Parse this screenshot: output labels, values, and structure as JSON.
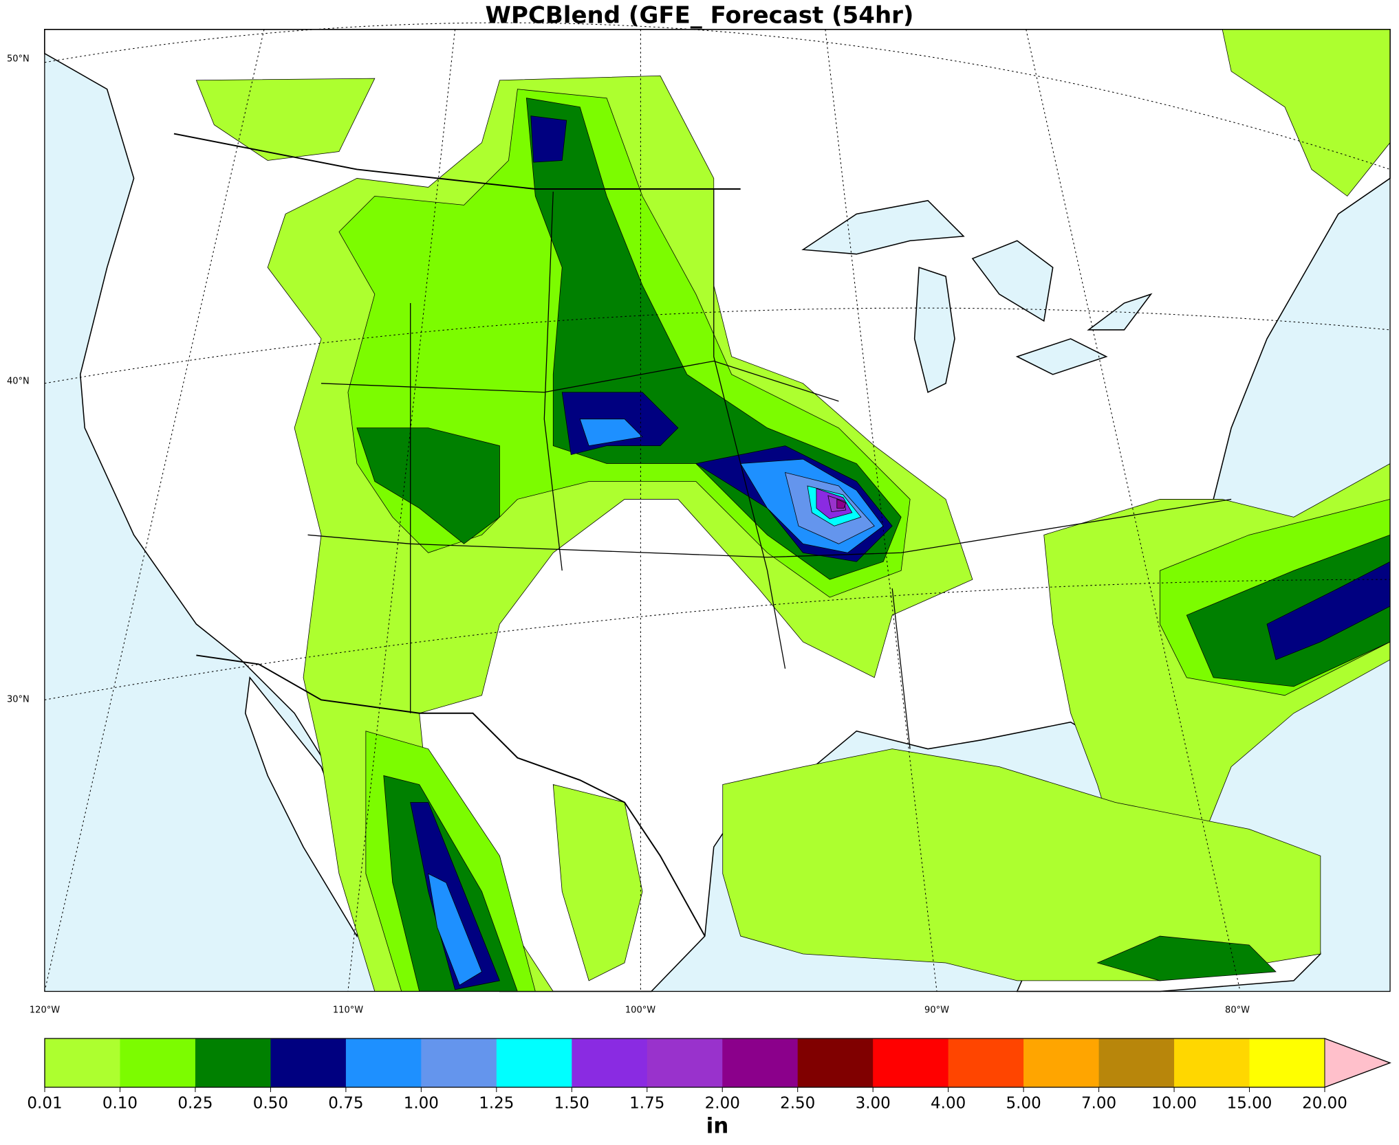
{
  "title": "WPCBlend (GFE_ Forecast (54hr)",
  "map": {
    "lat_labels": [
      "50°N",
      "40°N",
      "30°N"
    ],
    "lon_labels": [
      "120°W",
      "110°W",
      "100°W",
      "90°W",
      "80°W"
    ]
  },
  "colorbar": {
    "colors": [
      "#adff2f",
      "#7cfc00",
      "#008000",
      "#000080",
      "#1e90ff",
      "#6495ed",
      "#00ffff",
      "#8a2be2",
      "#9932cc",
      "#8b008b",
      "#800000",
      "#ff0000",
      "#ff4500",
      "#ffa500",
      "#b8860b",
      "#ffd700",
      "#ffff00"
    ],
    "over_color": "#ffc0cb",
    "ticks": [
      0.01,
      {
        "value": 0.1,
        "label": "0.10"
      },
      0.25,
      {
        "value": 0.5,
        "label": "0.50"
      },
      0.75,
      {
        "value": 1,
        "label": "1.00"
      },
      1.25,
      {
        "value": 1.5,
        "label": "1.50"
      },
      1.75,
      {
        "value": 2,
        "label": "2.00"
      },
      {
        "value": 2.5,
        "label": "2.50"
      },
      {
        "value": 3,
        "label": "3.00"
      },
      {
        "value": 4,
        "label": "4.00"
      },
      {
        "value": 5,
        "label": "5.00"
      },
      {
        "value": 7,
        "label": "7.00"
      },
      {
        "value": 10,
        "label": "10.00"
      },
      {
        "value": 15,
        "label": "15.00"
      },
      {
        "value": 20,
        "label": "20.00"
      }
    ],
    "unit": "in"
  }
}
